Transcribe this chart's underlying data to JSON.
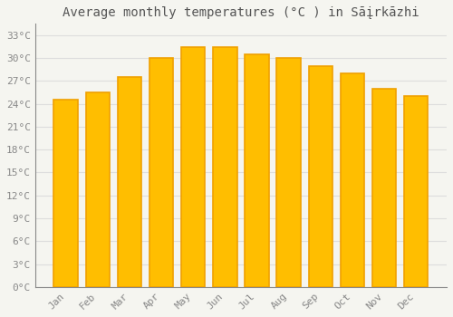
{
  "title": "Average monthly temperatures (°C ) in Sāįrkāzhi",
  "months": [
    "Jan",
    "Feb",
    "Mar",
    "Apr",
    "May",
    "Jun",
    "Jul",
    "Aug",
    "Sep",
    "Oct",
    "Nov",
    "Dec"
  ],
  "values": [
    24.5,
    25.5,
    27.5,
    30.0,
    31.5,
    31.5,
    30.5,
    30.0,
    29.0,
    28.0,
    26.0,
    25.0
  ],
  "bar_color_face": "#FFBE00",
  "bar_color_edge": "#F0A000",
  "background_color": "#f5f5f0",
  "plot_bg_color": "#f5f5f0",
  "grid_color": "#dddddd",
  "ytick_labels": [
    "0°C",
    "3°C",
    "6°C",
    "9°C",
    "12°C",
    "15°C",
    "18°C",
    "21°C",
    "24°C",
    "27°C",
    "30°C",
    "33°C"
  ],
  "ytick_values": [
    0,
    3,
    6,
    9,
    12,
    15,
    18,
    21,
    24,
    27,
    30,
    33
  ],
  "ylim": [
    0,
    34.5
  ],
  "title_fontsize": 10,
  "tick_fontsize": 8,
  "tick_color": "#888888",
  "title_color": "#555555",
  "bar_width": 0.75,
  "figsize": [
    5.0,
    3.5
  ],
  "dpi": 100
}
